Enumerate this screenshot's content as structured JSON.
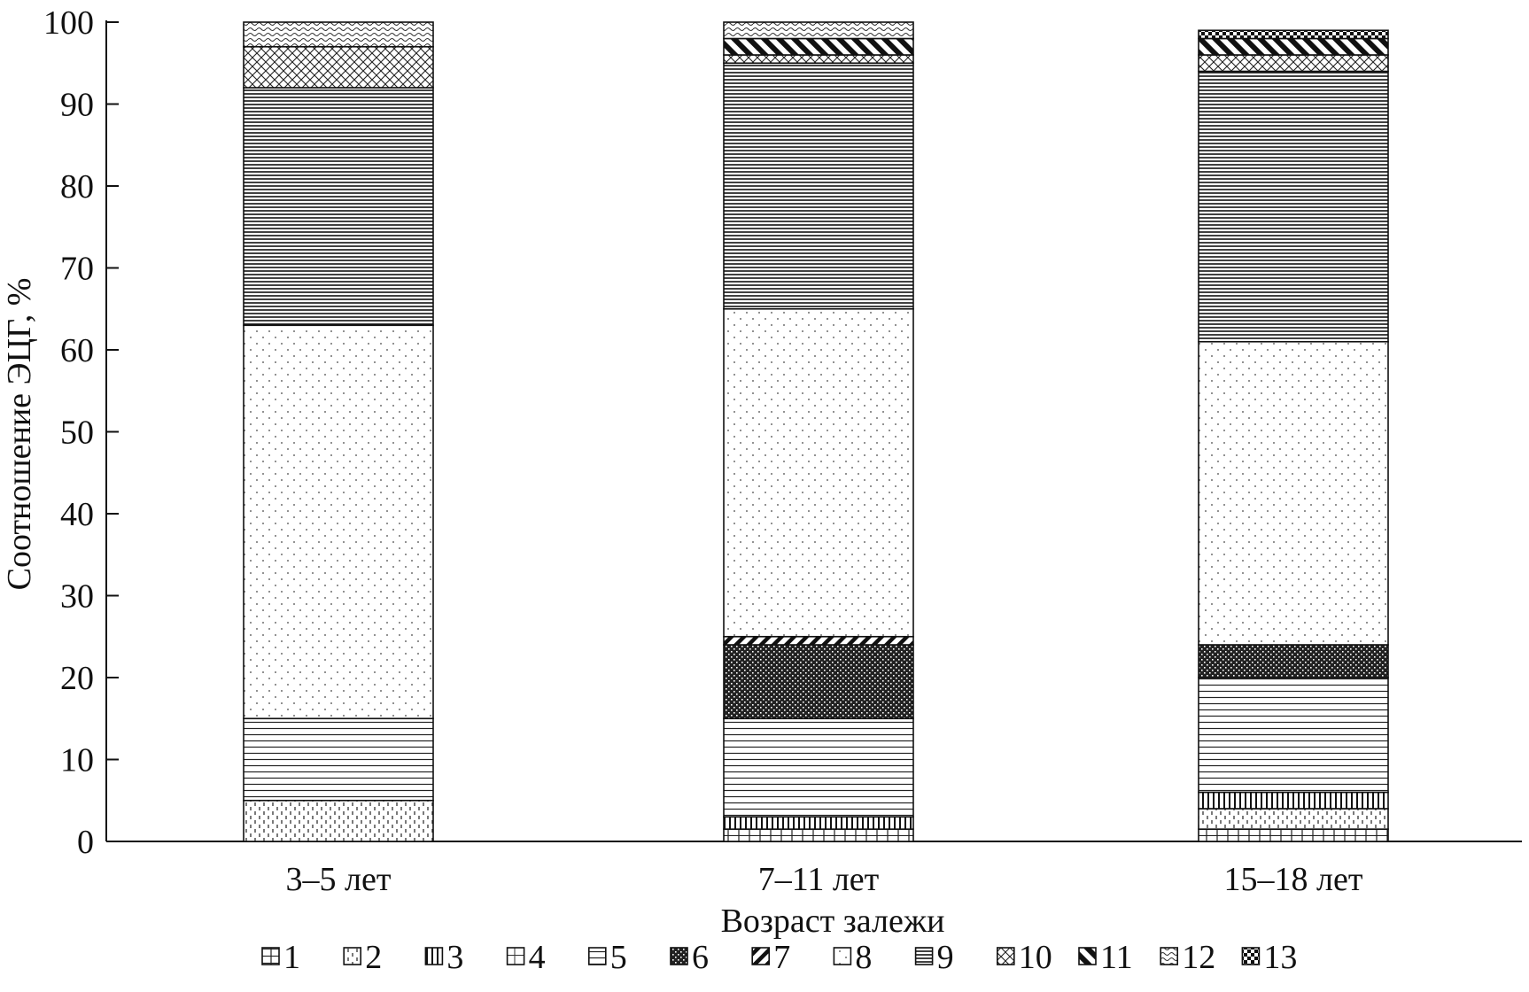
{
  "chart_data": {
    "type": "bar",
    "stacked": true,
    "xlabel": "Возраст залежи",
    "ylabel": "Соотношение ЭЦГ, %",
    "ylim": [
      0,
      100
    ],
    "yticks": [
      0,
      10,
      20,
      30,
      40,
      50,
      60,
      70,
      80,
      90,
      100
    ],
    "categories": [
      "3–5 лет",
      "7–11 лет",
      "15–18 лет"
    ],
    "legend_position": "bottom",
    "series": [
      {
        "name": "1",
        "values": [
          0,
          1.5,
          1.5
        ]
      },
      {
        "name": "2",
        "values": [
          5,
          0,
          2.5
        ]
      },
      {
        "name": "3",
        "values": [
          0,
          1.5,
          2
        ]
      },
      {
        "name": "4",
        "values": [
          0,
          0,
          0
        ]
      },
      {
        "name": "5",
        "values": [
          10,
          12,
          14
        ]
      },
      {
        "name": "6",
        "values": [
          0,
          9,
          4
        ]
      },
      {
        "name": "7",
        "values": [
          0,
          1,
          0
        ]
      },
      {
        "name": "8",
        "values": [
          48,
          40,
          37
        ]
      },
      {
        "name": "9",
        "values": [
          29,
          30,
          33
        ]
      },
      {
        "name": "10",
        "values": [
          5,
          1,
          2
        ]
      },
      {
        "name": "11",
        "values": [
          0,
          2,
          2
        ]
      },
      {
        "name": "12",
        "values": [
          3,
          2,
          0
        ]
      },
      {
        "name": "13",
        "values": [
          0,
          0,
          1
        ]
      }
    ]
  }
}
